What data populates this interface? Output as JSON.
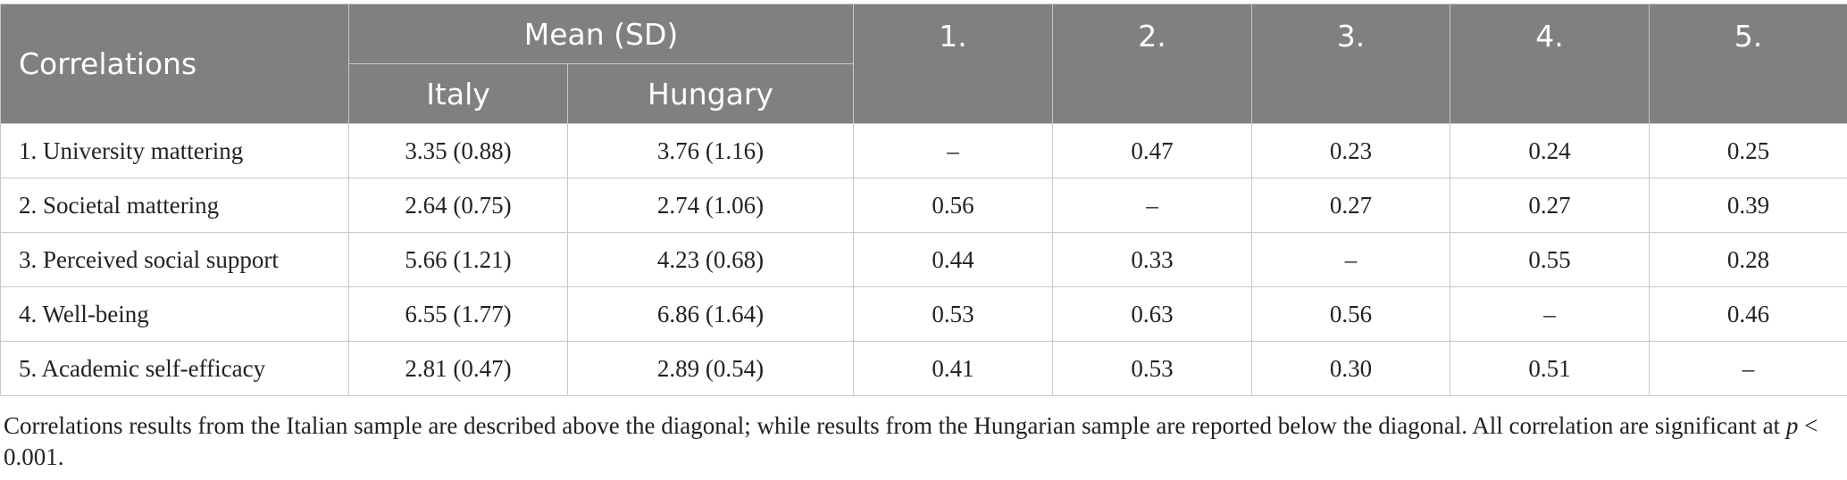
{
  "header": {
    "correlations": "Correlations",
    "mean_sd": "Mean (SD)",
    "italy": "Italy",
    "hungary": "Hungary",
    "cols": [
      "1.",
      "2.",
      "3.",
      "4.",
      "5."
    ]
  },
  "rows": [
    {
      "label": "1. University mattering",
      "italy": "3.35 (0.88)",
      "hungary": "3.76 (1.16)",
      "c": [
        "–",
        "0.47",
        "0.23",
        "0.24",
        "0.25"
      ]
    },
    {
      "label": "2. Societal mattering",
      "italy": "2.64 (0.75)",
      "hungary": "2.74 (1.06)",
      "c": [
        "0.56",
        "–",
        "0.27",
        "0.27",
        "0.39"
      ]
    },
    {
      "label": "3. Perceived social support",
      "italy": "5.66 (1.21)",
      "hungary": "4.23 (0.68)",
      "c": [
        "0.44",
        "0.33",
        "–",
        "0.55",
        "0.28"
      ]
    },
    {
      "label": "4. Well-being",
      "italy": "6.55 (1.77)",
      "hungary": "6.86 (1.64)",
      "c": [
        "0.53",
        "0.63",
        "0.56",
        "–",
        "0.46"
      ]
    },
    {
      "label": "5. Academic self-efficacy",
      "italy": "2.81 (0.47)",
      "hungary": "2.89 (0.54)",
      "c": [
        "0.41",
        "0.53",
        "0.30",
        "0.51",
        "–"
      ]
    }
  ],
  "note": {
    "text": "Correlations results from the Italian sample are described above the diagonal; while results from the Hungarian sample are reported below the diagonal. All correlation are significant at ",
    "p": "p",
    "tail": " < 0.001."
  }
}
